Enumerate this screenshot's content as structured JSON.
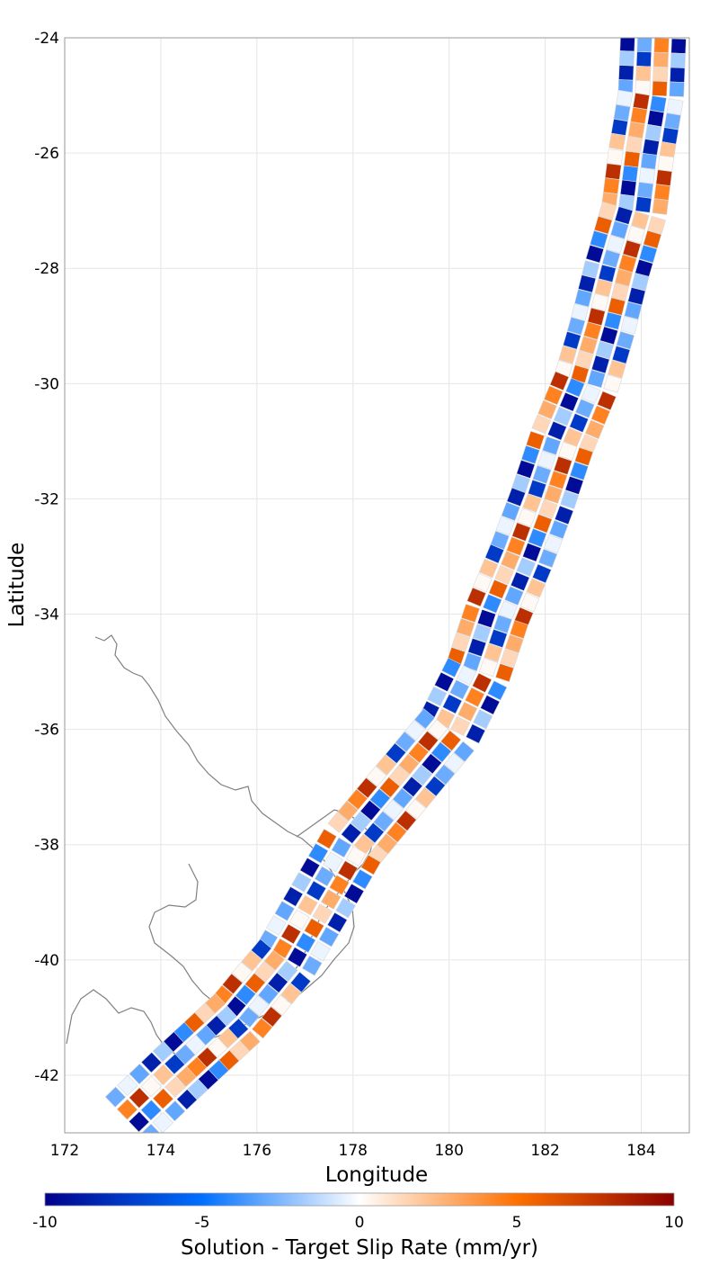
{
  "chart_data": {
    "type": "heatmap",
    "xlabel": "Longitude",
    "ylabel": "Latitude",
    "xlim": [
      172,
      185
    ],
    "ylim": [
      -43,
      -24
    ],
    "x_ticks": [
      "172",
      "174",
      "176",
      "178",
      "180",
      "182",
      "184"
    ],
    "y_ticks": [
      "-24",
      "-26",
      "-28",
      "-30",
      "-32",
      "-34",
      "-36",
      "-38",
      "-40",
      "-42"
    ],
    "grid": true,
    "colorbar": {
      "title": "Solution - Target Slip Rate (mm/yr)",
      "range": [
        -10,
        10
      ],
      "ticks": [
        "-10",
        "-5",
        "0",
        "5",
        "10"
      ],
      "colors": [
        "#00008b",
        "#0070ff",
        "#ffffff",
        "#ff7000",
        "#8b0000"
      ]
    },
    "fault_trace_lon_lat": [
      [
        184.25,
        -24.0
      ],
      [
        184.2,
        -25.0
      ],
      [
        184.0,
        -26.0
      ],
      [
        183.85,
        -27.0
      ],
      [
        183.5,
        -28.0
      ],
      [
        183.2,
        -29.0
      ],
      [
        182.85,
        -30.0
      ],
      [
        182.35,
        -31.0
      ],
      [
        181.95,
        -32.0
      ],
      [
        181.5,
        -33.0
      ],
      [
        181.0,
        -34.0
      ],
      [
        180.6,
        -35.0
      ],
      [
        180.0,
        -36.0
      ],
      [
        179.0,
        -37.0
      ],
      [
        178.0,
        -38.0
      ],
      [
        177.3,
        -39.0
      ],
      [
        176.6,
        -40.0
      ],
      [
        175.6,
        -41.0
      ],
      [
        174.3,
        -42.0
      ],
      [
        173.3,
        -42.8
      ]
    ],
    "patch_spacing_deg": 0.24,
    "strike_rows": 4,
    "slip_rate_difference_sample": [
      -9.5,
      3.2,
      -4.1,
      0.6,
      5.8,
      -2.2,
      1.4,
      -6.7,
      2.9,
      -0.8,
      4.4,
      -3.6,
      7.9,
      -1.5,
      0.2,
      -5.3,
      2.1,
      6.2,
      -7.4,
      1.1,
      -2.9,
      3.7,
      -0.4,
      5.1,
      -3.1,
      0.9,
      -8.6,
      4.8,
      -1.8,
      2.6
    ],
    "annotations": []
  }
}
